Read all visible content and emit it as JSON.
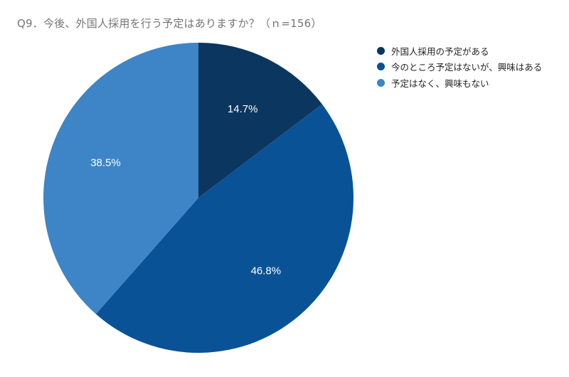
{
  "title": "Q9．今後、外国人採用を行う予定はありますか？（ｎ=156）",
  "chart_data": {
    "type": "pie",
    "title": "Q9．今後、外国人採用を行う予定はありますか？（ｎ=156）",
    "n": 156,
    "categories": [
      "外国人採用の予定がある",
      "今のところ予定はないが、興味はある",
      "予定はなく、興味もない"
    ],
    "values": [
      14.7,
      46.8,
      38.5
    ],
    "labels": [
      "14.7%",
      "46.8%",
      "38.5%"
    ],
    "colors": [
      "#0b365f",
      "#0a5296",
      "#3d85c6"
    ],
    "start_angle": "12 o'clock, clockwise",
    "legend_position": "right"
  },
  "legend": {
    "items": [
      {
        "label": "外国人採用の予定がある",
        "color": "#0b365f"
      },
      {
        "label": "今のところ予定はないが、興味はある",
        "color": "#0a5296"
      },
      {
        "label": "予定はなく、興味もない",
        "color": "#3d85c6"
      }
    ]
  }
}
